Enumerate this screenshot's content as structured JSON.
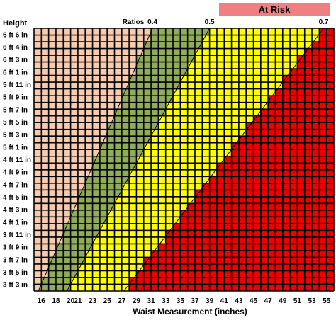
{
  "chart_data": {
    "type": "heatmap",
    "title": "",
    "xlabel": "Waist Measurement (inches)",
    "ylabel": "Height",
    "at_risk_label": "At Risk",
    "ratios_label": "Ratios",
    "ratio_lines": [
      {
        "label": "0.4",
        "ratio": 0.4
      },
      {
        "label": "0.5",
        "ratio": 0.5
      },
      {
        "label": "0.7",
        "ratio": 0.7
      }
    ],
    "x_tick_labels": [
      "16",
      "18",
      "20",
      "21",
      "23",
      "25",
      "27",
      "29",
      "31",
      "33",
      "35",
      "37",
      "39",
      "41",
      "43",
      "45",
      "47",
      "49",
      "51",
      "53",
      "55"
    ],
    "y_tick_labels": [
      "6 ft 6 in",
      "6 ft 4 in",
      "6 ft 3 in",
      "6 ft 1 in",
      "5 ft 11 in",
      "5 ft 9 in",
      "5 ft 7 in",
      "5 ft 5 in",
      "5 ft 3 in",
      "5 ft 1 in",
      "4 ft 11 in",
      "4 ft 9 in",
      "4 ft 7 in",
      "4 ft 5 in",
      "4 ft 3 in",
      "4 ft 1 in",
      "3 ft 11 in",
      "3 ft 9 in",
      "3 ft 7 in",
      "3 ft 5 in",
      "3 ft 3 in"
    ],
    "waist_range_inches": [
      15,
      56
    ],
    "height_range_inches": [
      39,
      78
    ],
    "zone_colors": {
      "below_0.4": "#f7cbb0",
      "0.4_to_0.5": "#8fac5a",
      "0.5_to_0.7": "#ffff00",
      "above_0.7": "#ee0000"
    },
    "grid_line_color": "#000000",
    "at_risk_color": "#f08080",
    "grid": true
  }
}
